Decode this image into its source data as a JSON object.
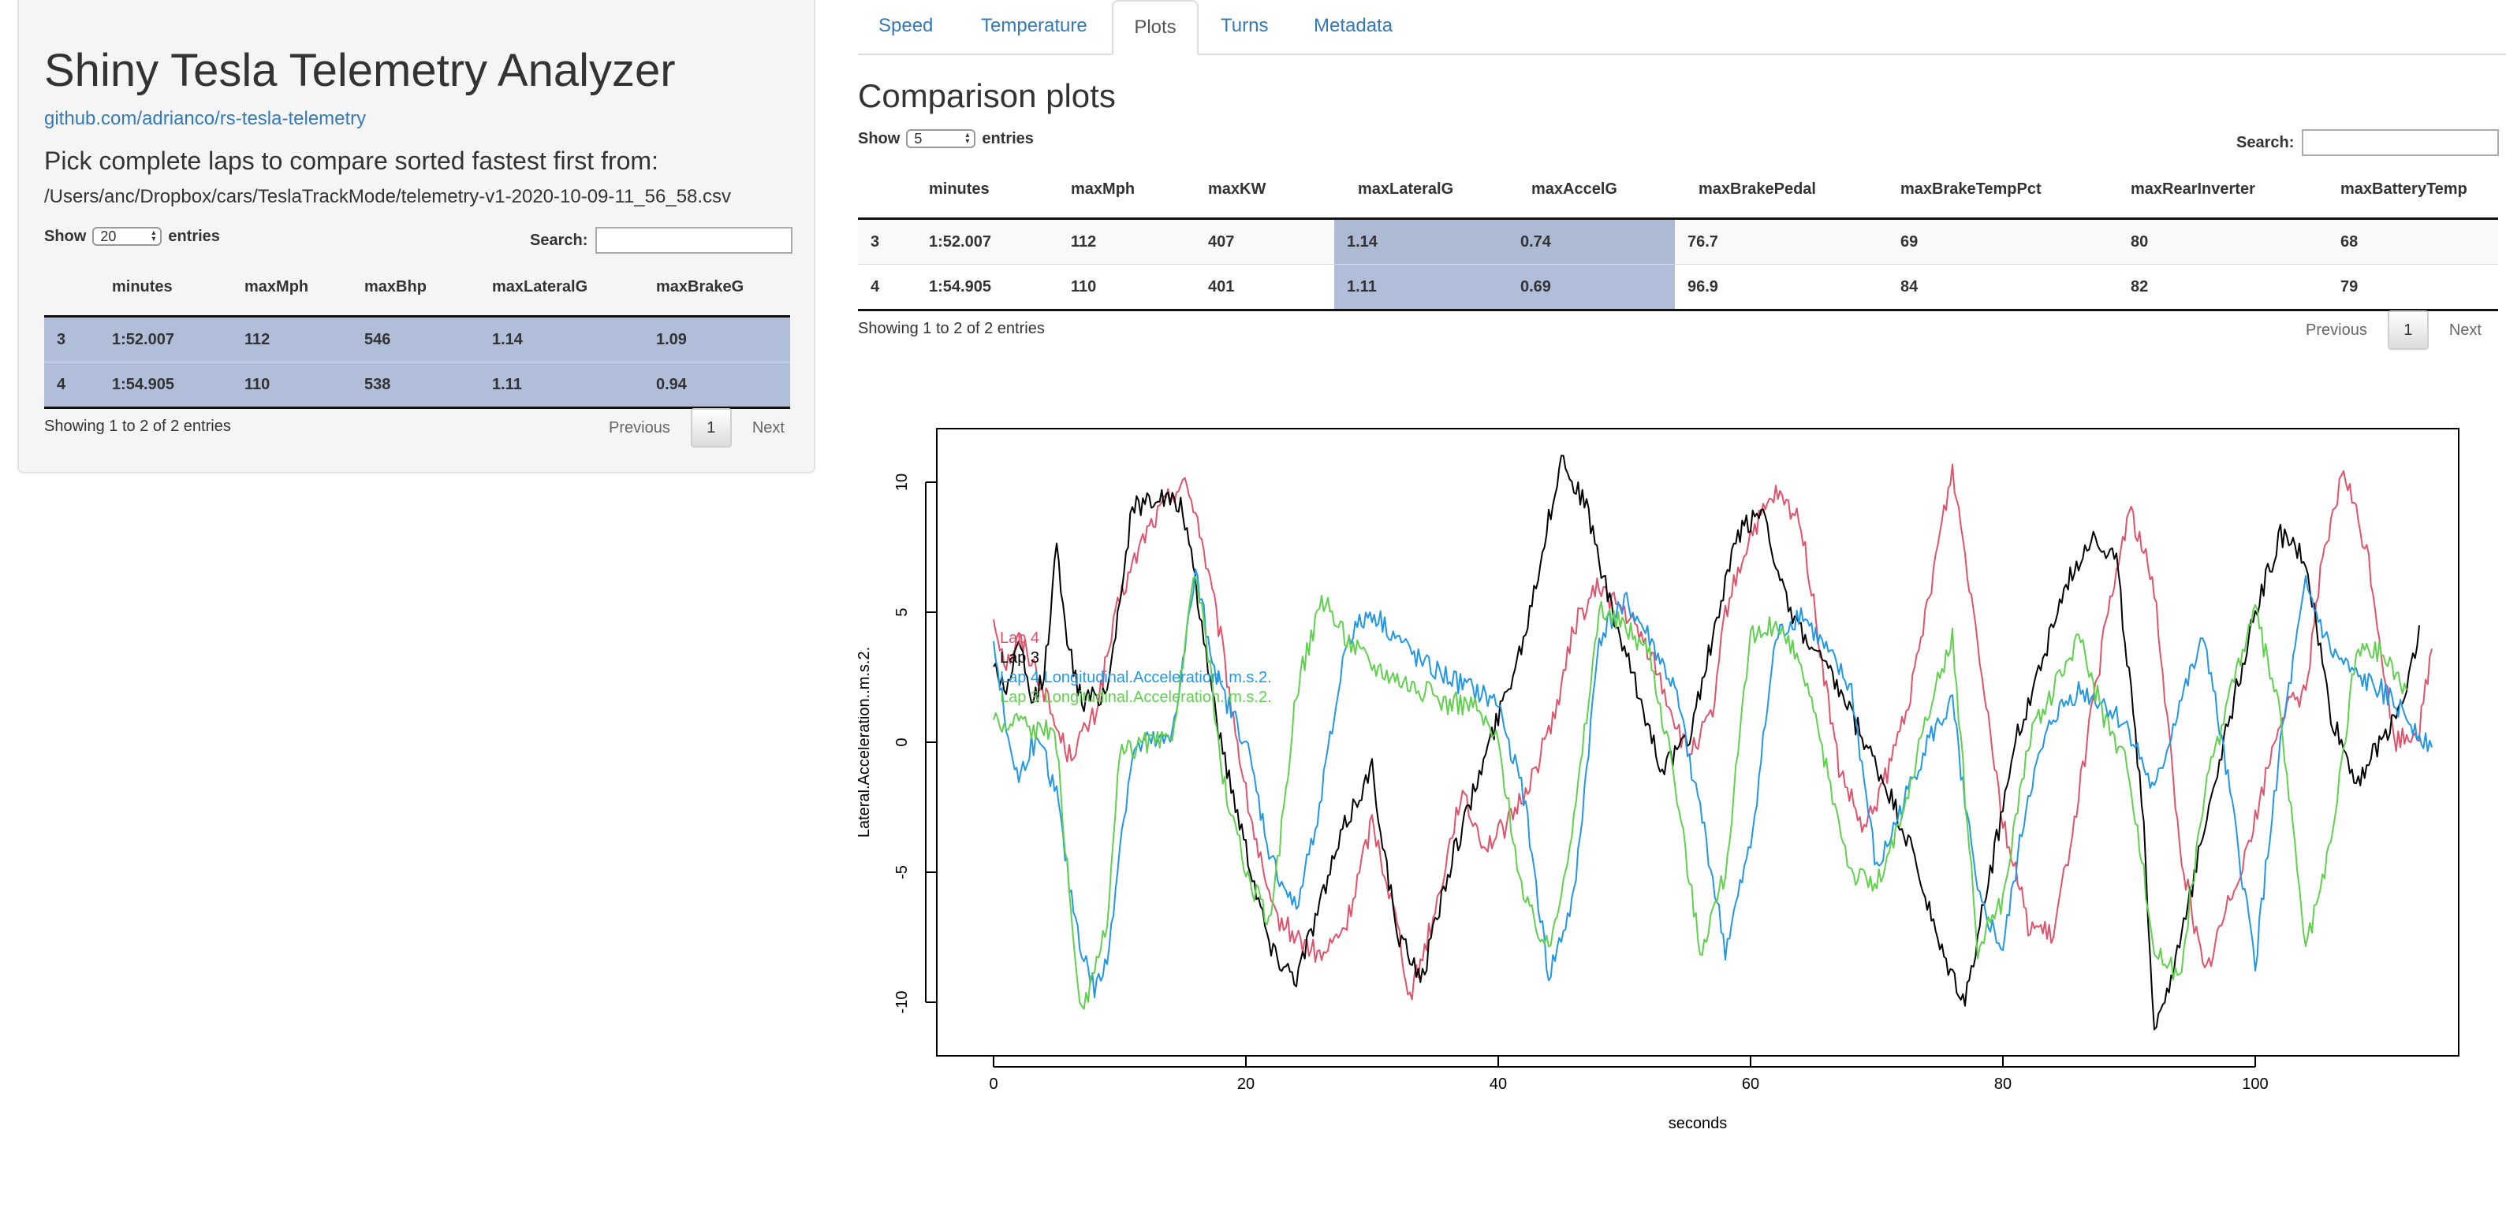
{
  "sidebar": {
    "title": "Shiny Tesla Telemetry Analyzer",
    "link_text": "github.com/adrianco/rs-tesla-telemetry",
    "pick_heading": "Pick complete laps to compare sorted fastest first from:",
    "file_path": "/Users/anc/Dropbox/cars/TeslaTrackMode/telemetry-v1-2020-10-09-11_56_58.csv",
    "show_label": "Show",
    "length_value": "20",
    "entries_label": "entries",
    "search_label": "Search:",
    "table": {
      "columns": [
        "",
        "minutes",
        "maxMph",
        "maxBhp",
        "maxLateralG",
        "maxBrakeG"
      ],
      "rows": [
        [
          "3",
          "1:52.007",
          "112",
          "546",
          "1.14",
          "1.09"
        ],
        [
          "4",
          "1:54.905",
          "110",
          "538",
          "1.11",
          "0.94"
        ]
      ]
    },
    "info": "Showing 1 to 2 of 2 entries",
    "prev_label": "Previous",
    "page": "1",
    "next_label": "Next"
  },
  "tabs": [
    {
      "label": "Speed",
      "active": false
    },
    {
      "label": "Temperature",
      "active": false
    },
    {
      "label": "Plots",
      "active": true
    },
    {
      "label": "Turns",
      "active": false
    },
    {
      "label": "Metadata",
      "active": false
    }
  ],
  "main": {
    "title": "Comparison plots",
    "show_label": "Show",
    "length_value": "5",
    "entries_label": "entries",
    "search_label": "Search:",
    "table": {
      "columns": [
        "",
        "minutes",
        "maxMph",
        "maxKW",
        "maxLateralG",
        "maxAccelG",
        "maxBrakePedal",
        "maxBrakeTempPct",
        "maxRearInverter",
        "maxBatteryTemp"
      ],
      "rows": [
        [
          "3",
          "1:52.007",
          "112",
          "407",
          "1.14",
          "0.74",
          "76.7",
          "69",
          "80",
          "68"
        ],
        [
          "4",
          "1:54.905",
          "110",
          "401",
          "1.11",
          "0.69",
          "96.9",
          "84",
          "82",
          "79"
        ]
      ]
    },
    "info": "Showing 1 to 2 of 2 entries",
    "prev_label": "Previous",
    "page": "1",
    "next_label": "Next"
  },
  "colors": {
    "link": "#337ab7",
    "selected_row": "#b0bed9",
    "lap4": "#df536b",
    "lap3": "#000000",
    "lap4_long": "#2297e6",
    "lap3_long": "#61d04f"
  },
  "chart_data": {
    "type": "line",
    "title": "",
    "xlabel": "seconds",
    "ylabel": "Lateral.Acceleration..m.s.2.",
    "xlim": [
      0,
      115
    ],
    "ylim": [
      -11.5,
      11.5
    ],
    "xticks": [
      0,
      20,
      40,
      60,
      80,
      100
    ],
    "yticks": [
      -10,
      -5,
      0,
      5,
      10
    ],
    "legend_position": "top-left",
    "series": [
      {
        "name": "Lap 4",
        "color": "#df536b",
        "x": [
          0,
          1,
          2,
          3,
          4,
          5,
          6,
          8,
          10,
          12,
          14,
          15,
          16,
          18,
          20,
          22,
          24,
          26,
          28,
          30,
          32,
          33,
          35,
          37,
          39,
          41,
          43,
          45,
          46,
          48,
          50,
          52,
          55,
          57,
          58,
          60,
          62,
          64,
          66,
          67,
          69,
          71,
          73,
          75,
          76,
          78,
          80,
          82,
          84,
          86,
          88,
          90,
          92,
          94,
          96,
          98,
          100,
          102,
          104,
          105,
          107,
          109,
          111,
          113,
          114
        ],
        "y": [
          4.8,
          3.0,
          4.0,
          3.2,
          2.0,
          0.5,
          -0.5,
          1.0,
          5.5,
          8.0,
          9.5,
          10.0,
          9.0,
          4.0,
          -2.0,
          -6.5,
          -7.5,
          -8.3,
          -7.0,
          -3.0,
          -7.0,
          -9.8,
          -6.5,
          -2.0,
          -4.0,
          -3.0,
          -1.0,
          2.0,
          4.5,
          6.0,
          5.0,
          3.5,
          -0.5,
          1.0,
          5.0,
          8.0,
          9.5,
          8.5,
          2.0,
          -1.0,
          -3.5,
          -1.0,
          2.5,
          8.0,
          10.5,
          4.0,
          -3.0,
          -7.0,
          -7.5,
          -2.0,
          4.0,
          9.0,
          6.0,
          -4.0,
          -9.0,
          -6.0,
          -3.0,
          1.0,
          2.0,
          6.0,
          10.5,
          7.0,
          0.0,
          0.5,
          3.6
        ]
      },
      {
        "name": "Lap 3",
        "color": "#000000",
        "x": [
          0,
          1,
          2,
          3,
          4,
          5,
          6,
          7,
          9,
          11,
          13,
          15,
          16,
          18,
          20,
          22,
          24,
          26,
          28,
          30,
          32,
          34,
          36,
          38,
          40,
          42,
          44,
          45,
          47,
          49,
          51,
          53,
          55,
          57,
          59,
          61,
          63,
          65,
          67,
          69,
          71,
          73,
          75,
          77,
          79,
          81,
          83,
          85,
          87,
          89,
          91,
          92,
          94,
          96,
          98,
          100,
          102,
          104,
          106,
          108,
          110,
          112,
          113
        ],
        "y": [
          3.0,
          2.0,
          3.8,
          1.5,
          2.5,
          7.5,
          3.5,
          1.5,
          2.0,
          9.0,
          9.5,
          9.0,
          6.0,
          0.0,
          -4.0,
          -8.0,
          -9.0,
          -6.0,
          -3.0,
          -1.0,
          -7.5,
          -9.0,
          -5.0,
          -2.0,
          1.0,
          4.0,
          8.5,
          11.0,
          9.0,
          5.0,
          2.0,
          -1.0,
          0.0,
          4.0,
          8.0,
          9.0,
          5.0,
          3.5,
          2.0,
          0.0,
          -2.0,
          -4.5,
          -8.0,
          -10.0,
          -5.0,
          0.0,
          3.0,
          6.0,
          8.0,
          7.0,
          -2.0,
          -11.0,
          -8.0,
          -3.0,
          1.0,
          5.0,
          8.0,
          7.0,
          1.0,
          -1.5,
          0.0,
          2.0,
          4.5
        ]
      },
      {
        "name": "Lap 4 Longitudinal.Acceleration..m.s.2.",
        "color": "#2297e6",
        "x": [
          0,
          1,
          2,
          3,
          4,
          5,
          6,
          7,
          8,
          9,
          10,
          11,
          12,
          14,
          15,
          16,
          17,
          18,
          20,
          22,
          24,
          26,
          28,
          30,
          32,
          34,
          36,
          38,
          40,
          42,
          44,
          46,
          48,
          50,
          52,
          54,
          56,
          58,
          60,
          62,
          64,
          66,
          68,
          70,
          72,
          74,
          76,
          78,
          80,
          82,
          84,
          86,
          88,
          90,
          92,
          94,
          96,
          98,
          100,
          102,
          104,
          106,
          108,
          110,
          112,
          114
        ],
        "y": [
          4.0,
          0.5,
          -1.5,
          0.0,
          -0.5,
          -2.0,
          -5.5,
          -8.0,
          -9.5,
          -8.5,
          -4.0,
          -0.5,
          0.0,
          0.0,
          3.0,
          6.5,
          4.0,
          2.0,
          0.0,
          -4.5,
          -6.5,
          -2.0,
          4.0,
          5.0,
          4.0,
          3.0,
          2.5,
          2.0,
          1.5,
          -2.0,
          -9.0,
          -6.0,
          4.0,
          5.5,
          4.0,
          2.0,
          -2.5,
          -8.0,
          -4.0,
          4.0,
          5.0,
          3.5,
          2.0,
          -5.0,
          -2.5,
          0.0,
          1.5,
          -6.0,
          -8.0,
          -2.0,
          1.0,
          2.0,
          1.5,
          0.5,
          -2.0,
          1.5,
          4.0,
          -2.0,
          -8.5,
          0.0,
          6.0,
          3.5,
          2.5,
          2.0,
          1.0,
          -0.2
        ]
      },
      {
        "name": "Lap 3 Longitudinal.Acceleration..m.s.2.",
        "color": "#61d04f",
        "x": [
          0,
          1,
          2,
          3,
          4,
          5,
          6,
          7,
          8,
          9,
          10,
          12,
          14,
          15,
          16,
          17,
          18,
          20,
          22,
          24,
          26,
          28,
          30,
          32,
          34,
          36,
          38,
          40,
          42,
          44,
          46,
          48,
          50,
          52,
          54,
          56,
          58,
          60,
          62,
          64,
          66,
          68,
          70,
          72,
          74,
          76,
          78,
          80,
          82,
          84,
          86,
          88,
          90,
          92,
          94,
          96,
          98,
          100,
          102,
          104,
          106,
          108,
          110,
          112
        ],
        "y": [
          1.0,
          0.5,
          1.0,
          0.5,
          0.5,
          0.0,
          -6.0,
          -10.5,
          -9.0,
          -7.0,
          -0.5,
          0.0,
          0.0,
          3.0,
          6.5,
          3.5,
          -1.0,
          -5.0,
          -7.0,
          2.0,
          5.5,
          4.0,
          3.0,
          2.5,
          2.0,
          1.5,
          1.5,
          0.0,
          -6.0,
          -8.0,
          -3.0,
          5.0,
          4.5,
          3.5,
          -1.5,
          -8.0,
          -5.0,
          4.0,
          4.5,
          3.0,
          -1.0,
          -5.0,
          -5.5,
          -3.0,
          1.0,
          4.0,
          -8.0,
          -6.0,
          0.0,
          2.0,
          4.0,
          1.0,
          -1.0,
          -8.0,
          -9.0,
          -2.0,
          2.0,
          5.0,
          1.0,
          -8.0,
          -4.0,
          3.5,
          3.5,
          2.0
        ]
      }
    ]
  }
}
